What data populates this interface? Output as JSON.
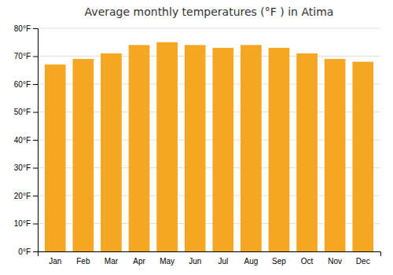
{
  "chart_data": {
    "type": "bar",
    "title": "Average monthly temperatures (°F ) in Atima",
    "categories": [
      "Jan",
      "Feb",
      "Mar",
      "Apr",
      "May",
      "Jun",
      "Jul",
      "Aug",
      "Sep",
      "Oct",
      "Nov",
      "Dec"
    ],
    "values": [
      67,
      69,
      71,
      74,
      75,
      74,
      73,
      74,
      73,
      71,
      69,
      68
    ],
    "color": "#F5A623",
    "ylim": [
      0,
      80
    ],
    "yticks": [
      {
        "value": 0,
        "label": "0°F"
      },
      {
        "value": 10,
        "label": "10°F"
      },
      {
        "value": 20,
        "label": "20°F"
      },
      {
        "value": 30,
        "label": "30°F"
      },
      {
        "value": 40,
        "label": "40°F"
      },
      {
        "value": 50,
        "label": "50°F"
      },
      {
        "value": 60,
        "label": "60°F"
      },
      {
        "value": 70,
        "label": "70°F"
      },
      {
        "value": 80,
        "label": "80°F"
      }
    ],
    "grid": true
  }
}
